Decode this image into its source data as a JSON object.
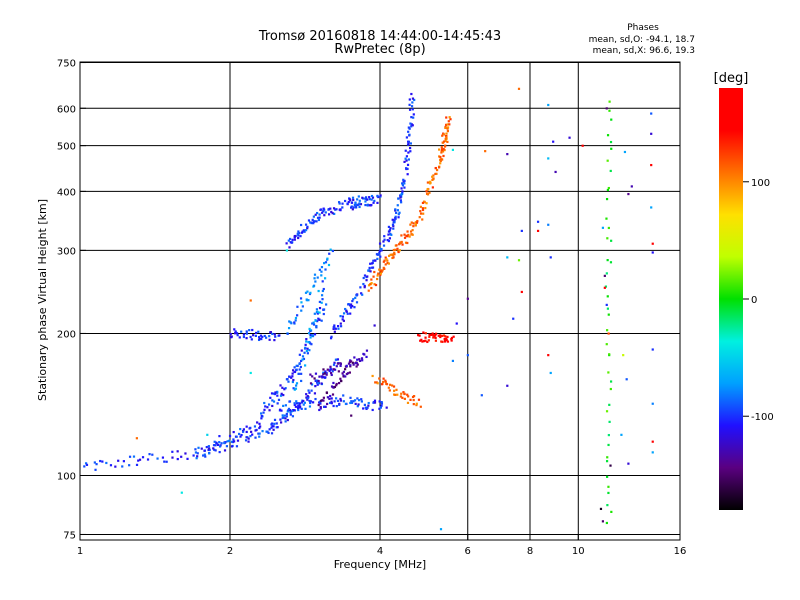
{
  "chart_data": {
    "type": "scatter",
    "title": "Tromsø 20160818 14:44:00-14:45:43",
    "subtitle": "RwPretec (8p)",
    "xlabel": "Frequency [MHz]",
    "ylabel": "Stationary phase Virtual Height [km]",
    "x_scale": "log",
    "y_scale": "log",
    "xlim": [
      1,
      16
    ],
    "ylim": [
      73,
      752
    ],
    "xticks": [
      1,
      2,
      4,
      6,
      8,
      10,
      16
    ],
    "xtick_labels": [
      "1",
      "2",
      "4",
      "6",
      "8",
      "10",
      "16"
    ],
    "yticks": [
      75,
      100,
      200,
      300,
      400,
      500,
      600,
      750
    ],
    "ytick_labels": [
      "75",
      "100",
      "200",
      "300",
      "400",
      "500",
      "600",
      "750"
    ],
    "grid": true,
    "phase_box": {
      "title": "Phases",
      "line1": "mean, sd,O: -94.1, 18.7",
      "line2": "mean, sd,X:  96.6, 19.3"
    },
    "colorbar": {
      "label": "[deg]",
      "range": [
        -180,
        180
      ],
      "ticks": [
        100,
        0,
        -100
      ],
      "tick_labels": [
        "100",
        "0",
        "-100"
      ],
      "colors": [
        "#000000",
        "#5a0080",
        "#2010ff",
        "#00a0ff",
        "#00f0e0",
        "#00e000",
        "#c0ff00",
        "#ffe000",
        "#ff7000",
        "#ff0000",
        "#ff0000"
      ]
    },
    "series": [
      {
        "phase": -100,
        "segments": [
          {
            "x0": 1.0,
            "x1": 1.8,
            "y0": 104,
            "y1": 112
          },
          {
            "x0": 1.8,
            "x1": 2.4,
            "y0": 112,
            "y1": 126
          },
          {
            "x0": 2.4,
            "x1": 2.8,
            "y0": 126,
            "y1": 142
          },
          {
            "x0": 2.8,
            "x1": 3.3,
            "y0": 145,
            "y1": 175
          },
          {
            "x0": 3.2,
            "x1": 3.7,
            "y0": 200,
            "y1": 250
          },
          {
            "x0": 3.7,
            "x1": 4.2,
            "y0": 260,
            "y1": 330
          },
          {
            "x0": 4.2,
            "x1": 4.5,
            "y0": 330,
            "y1": 420
          },
          {
            "x0": 4.5,
            "x1": 4.65,
            "y0": 430,
            "y1": 640
          },
          {
            "x0": 1.7,
            "x1": 2.3,
            "y0": 112,
            "y1": 128
          },
          {
            "x0": 2.3,
            "x1": 2.7,
            "y0": 135,
            "y1": 165
          },
          {
            "x0": 2.7,
            "x1": 3.1,
            "y0": 165,
            "y1": 230
          },
          {
            "x0": 2.6,
            "x1": 3.0,
            "y0": 310,
            "y1": 355
          },
          {
            "x0": 3.0,
            "x1": 3.6,
            "y0": 355,
            "y1": 385
          },
          {
            "x0": 2.5,
            "x1": 3.3,
            "y0": 140,
            "y1": 143
          },
          {
            "x0": 3.3,
            "x1": 4.1,
            "y0": 145,
            "y1": 140
          },
          {
            "x0": 2.0,
            "x1": 2.5,
            "y0": 200,
            "y1": 198
          },
          {
            "x0": 3.5,
            "x1": 4.0,
            "y0": 375,
            "y1": 385
          }
        ]
      },
      {
        "phase": -80,
        "segments": [
          {
            "x0": 2.6,
            "x1": 3.2,
            "y0": 200,
            "y1": 300
          },
          {
            "x0": 2.7,
            "x1": 3.1,
            "y0": 150,
            "y1": 260
          }
        ]
      },
      {
        "phase": -135,
        "segments": [
          {
            "x0": 2.9,
            "x1": 3.8,
            "y0": 160,
            "y1": 180
          },
          {
            "x0": 3.0,
            "x1": 3.6,
            "y0": 140,
            "y1": 175
          }
        ]
      },
      {
        "phase": 110,
        "segments": [
          {
            "x0": 3.8,
            "x1": 4.3,
            "y0": 250,
            "y1": 300
          },
          {
            "x0": 4.3,
            "x1": 4.8,
            "y0": 300,
            "y1": 350
          },
          {
            "x0": 4.8,
            "x1": 5.3,
            "y0": 360,
            "y1": 470
          },
          {
            "x0": 5.3,
            "x1": 5.5,
            "y0": 470,
            "y1": 570
          },
          {
            "x0": 3.9,
            "x1": 4.8,
            "y0": 160,
            "y1": 142
          }
        ]
      },
      {
        "phase": 150,
        "segments": [
          {
            "x0": 4.8,
            "x1": 5.6,
            "y0": 197,
            "y1": 196
          }
        ]
      },
      {
        "phase": 0,
        "segments": [
          {
            "x0": 11.5,
            "x1": 11.5,
            "y0": 78,
            "y1": 625
          }
        ]
      }
    ],
    "scatter_points": [
      {
        "x": 6.5,
        "y": 487,
        "phase": 110
      },
      {
        "x": 7.2,
        "y": 480,
        "phase": -130
      },
      {
        "x": 7.6,
        "y": 660,
        "phase": 110
      },
      {
        "x": 7.7,
        "y": 330,
        "phase": -100
      },
      {
        "x": 7.2,
        "y": 290,
        "phase": -60
      },
      {
        "x": 7.6,
        "y": 286,
        "phase": 20
      },
      {
        "x": 7.4,
        "y": 215,
        "phase": -100
      },
      {
        "x": 7.7,
        "y": 245,
        "phase": 150
      },
      {
        "x": 8.3,
        "y": 345,
        "phase": -100
      },
      {
        "x": 8.3,
        "y": 330,
        "phase": 160
      },
      {
        "x": 8.7,
        "y": 610,
        "phase": -70
      },
      {
        "x": 8.9,
        "y": 510,
        "phase": -110
      },
      {
        "x": 8.7,
        "y": 470,
        "phase": -60
      },
      {
        "x": 9.0,
        "y": 440,
        "phase": -130
      },
      {
        "x": 8.7,
        "y": 340,
        "phase": -80
      },
      {
        "x": 8.8,
        "y": 290,
        "phase": -100
      },
      {
        "x": 8.7,
        "y": 180,
        "phase": 170
      },
      {
        "x": 8.8,
        "y": 165,
        "phase": -70
      },
      {
        "x": 7.2,
        "y": 155,
        "phase": -120
      },
      {
        "x": 6.4,
        "y": 148,
        "phase": -90
      },
      {
        "x": 6.0,
        "y": 180,
        "phase": -90
      },
      {
        "x": 5.7,
        "y": 210,
        "phase": -110
      },
      {
        "x": 6.0,
        "y": 237,
        "phase": -140
      },
      {
        "x": 5.6,
        "y": 175,
        "phase": -80
      },
      {
        "x": 10.2,
        "y": 500,
        "phase": 160
      },
      {
        "x": 9.6,
        "y": 520,
        "phase": -120
      },
      {
        "x": 11.4,
        "y": 600,
        "phase": -150
      },
      {
        "x": 11.2,
        "y": 335,
        "phase": -70
      },
      {
        "x": 11.3,
        "y": 265,
        "phase": -150
      },
      {
        "x": 11.3,
        "y": 250,
        "phase": 180
      },
      {
        "x": 11.4,
        "y": 230,
        "phase": -100
      },
      {
        "x": 11.5,
        "y": 200,
        "phase": 120
      },
      {
        "x": 12.3,
        "y": 180,
        "phase": 40
      },
      {
        "x": 12.5,
        "y": 160,
        "phase": -90
      },
      {
        "x": 12.2,
        "y": 122,
        "phase": -70
      },
      {
        "x": 12.6,
        "y": 106,
        "phase": -120
      },
      {
        "x": 11.6,
        "y": 105,
        "phase": -160
      },
      {
        "x": 12.8,
        "y": 410,
        "phase": -130
      },
      {
        "x": 12.6,
        "y": 395,
        "phase": -140
      },
      {
        "x": 12.4,
        "y": 485,
        "phase": -70
      },
      {
        "x": 14.0,
        "y": 585,
        "phase": -90
      },
      {
        "x": 14.0,
        "y": 530,
        "phase": -120
      },
      {
        "x": 14.0,
        "y": 455,
        "phase": 175
      },
      {
        "x": 14.0,
        "y": 370,
        "phase": -70
      },
      {
        "x": 14.1,
        "y": 310,
        "phase": 160
      },
      {
        "x": 14.1,
        "y": 297,
        "phase": -110
      },
      {
        "x": 14.1,
        "y": 142,
        "phase": -80
      },
      {
        "x": 14.1,
        "y": 118,
        "phase": 170
      },
      {
        "x": 14.1,
        "y": 112,
        "phase": -70
      },
      {
        "x": 14.1,
        "y": 185,
        "phase": -100
      },
      {
        "x": 11.1,
        "y": 85,
        "phase": -170
      },
      {
        "x": 11.2,
        "y": 80,
        "phase": -150
      },
      {
        "x": 1.3,
        "y": 120,
        "phase": 110
      },
      {
        "x": 1.6,
        "y": 92,
        "phase": -40
      },
      {
        "x": 1.8,
        "y": 122,
        "phase": -50
      },
      {
        "x": 2.2,
        "y": 235,
        "phase": 110
      },
      {
        "x": 2.2,
        "y": 165,
        "phase": -40
      },
      {
        "x": 3.5,
        "y": 134,
        "phase": -150
      },
      {
        "x": 3.9,
        "y": 208,
        "phase": -120
      },
      {
        "x": 5.3,
        "y": 77,
        "phase": -70
      },
      {
        "x": 5.6,
        "y": 490,
        "phase": -40
      },
      {
        "x": 2.6,
        "y": 300,
        "phase": -40
      }
    ]
  }
}
